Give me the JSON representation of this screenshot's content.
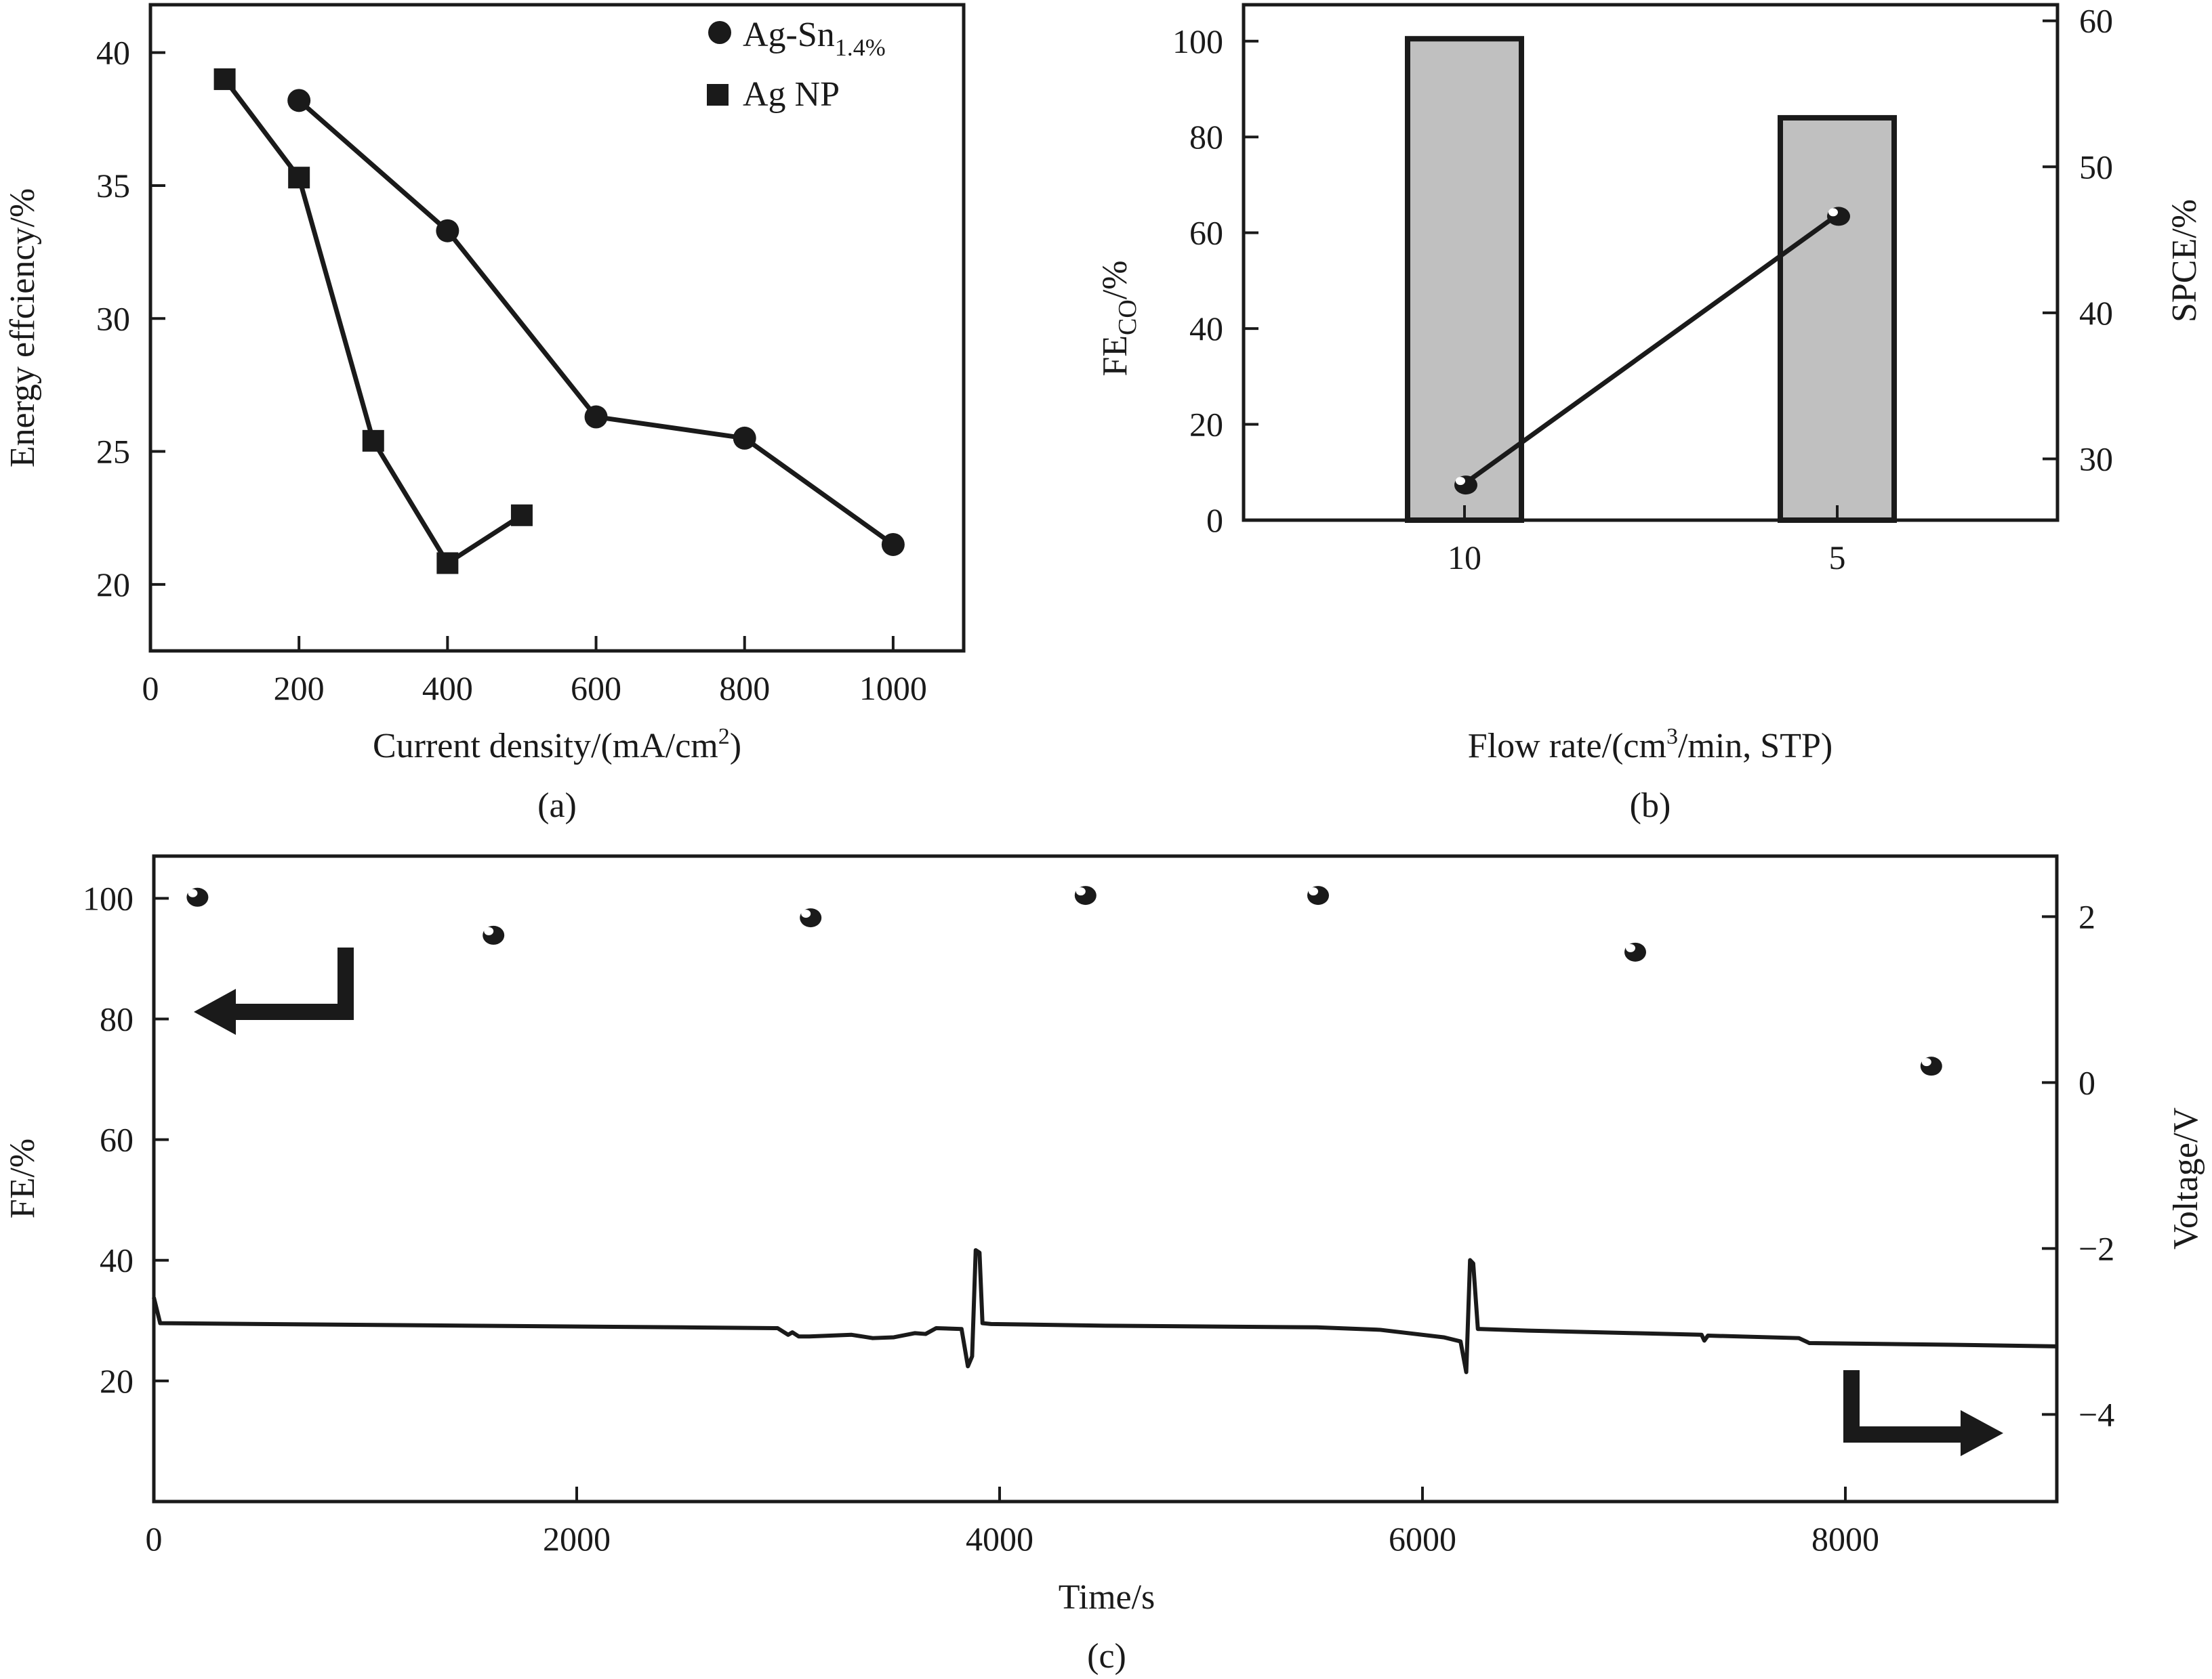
{
  "chart_data": [
    {
      "id": "a",
      "type": "line",
      "panel_label": "(a)",
      "xlabel": "Current density/(mA/cm",
      "xlabel_sup": "2",
      "xlabel_tail": ")",
      "ylabel": "Energy effciency/%",
      "xlim": [
        0,
        1095
      ],
      "ylim": [
        17.5,
        41.8
      ],
      "xticks": [
        0,
        200,
        400,
        600,
        800,
        1000
      ],
      "yticks": [
        20,
        25,
        30,
        35,
        40
      ],
      "grid": false,
      "legend_position": "top-right",
      "series": [
        {
          "name": "Ag-Sn",
          "name_sub": "1.4%",
          "marker": "circle",
          "x": [
            200,
            400,
            600,
            800,
            1000
          ],
          "y": [
            38.2,
            33.3,
            26.3,
            25.5,
            21.5
          ]
        },
        {
          "name": "Ag NP",
          "name_sub": "",
          "marker": "square",
          "x": [
            100,
            200,
            300,
            400,
            500
          ],
          "y": [
            39.0,
            35.3,
            25.4,
            20.8,
            22.6
          ]
        }
      ]
    },
    {
      "id": "b",
      "type": "bar",
      "panel_label": "(b)",
      "xlabel": "Flow rate/(cm",
      "xlabel_sup": "3",
      "xlabel_tail": "/min, STP)",
      "ylabel": "FE",
      "ylabel_sub": "CO",
      "ylabel_tail": "/%",
      "y2label": "SPCE/%",
      "categories": [
        "10",
        "5"
      ],
      "ylim": [
        0,
        107.6
      ],
      "yticks": [
        0,
        20,
        40,
        60,
        80,
        100
      ],
      "y2lim": [
        25.8,
        61.1
      ],
      "y2ticks": [
        30,
        40,
        50,
        60
      ],
      "grid": false,
      "series": [
        {
          "name": "FE_CO",
          "axis": "left",
          "kind": "bar",
          "values": [
            100.5,
            84.0
          ]
        },
        {
          "name": "SPCE",
          "axis": "right",
          "kind": "line-marker",
          "values": [
            28.3,
            46.7
          ]
        }
      ]
    },
    {
      "id": "c",
      "type": "scatter",
      "panel_label": "(c)",
      "xlabel": "Time/s",
      "ylabel": "FE/%",
      "y2label": "Voltage/V",
      "xlim": [
        0,
        9000
      ],
      "xticks": [
        0,
        2000,
        4000,
        6000,
        8000
      ],
      "ylim": [
        0,
        107
      ],
      "yticks": [
        20,
        40,
        60,
        80,
        100
      ],
      "y2lim": [
        -5.05,
        2.73
      ],
      "y2ticks": [
        -4,
        -2,
        0,
        2
      ],
      "y2tick_labels": [
        "−4",
        "−2",
        "0",
        "2"
      ],
      "grid": false,
      "annotations": [
        {
          "type": "arrow",
          "direction": "left",
          "meaning": "FE points refer to left axis"
        },
        {
          "type": "arrow",
          "direction": "right",
          "meaning": "voltage line refers to right axis"
        }
      ],
      "series": [
        {
          "name": "FE",
          "axis": "left",
          "kind": "scatter",
          "x": [
            200,
            1600,
            3100,
            4400,
            5500,
            7000,
            8400
          ],
          "y": [
            100.4,
            94.1,
            97.0,
            100.7,
            100.7,
            91.3,
            72.4
          ]
        },
        {
          "name": "Voltage",
          "axis": "right",
          "kind": "line",
          "x": [
            0,
            30,
            500,
            1500,
            2500,
            2950,
            3000,
            3020,
            3050,
            3100,
            3300,
            3400,
            3500,
            3600,
            3650,
            3700,
            3820,
            3850,
            3870,
            3887,
            3905,
            3919,
            3960,
            4500,
            5500,
            5800,
            6100,
            6180,
            6207,
            6225,
            6240,
            6262,
            6274,
            6500,
            7000,
            7320,
            7333,
            7350,
            7780,
            7830,
            8500,
            9000
          ],
          "y": [
            -2.59,
            -2.9,
            -2.91,
            -2.93,
            -2.95,
            -2.96,
            -3.04,
            -3.01,
            -3.06,
            -3.06,
            -3.04,
            -3.08,
            -3.07,
            -3.02,
            -3.03,
            -2.96,
            -2.97,
            -3.42,
            -3.3,
            -2.02,
            -2.05,
            -2.9,
            -2.91,
            -2.93,
            -2.95,
            -2.98,
            -3.07,
            -3.12,
            -3.49,
            -2.14,
            -2.18,
            -2.97,
            -2.97,
            -2.99,
            -3.02,
            -3.04,
            -3.11,
            -3.05,
            -3.08,
            -3.14,
            -3.16,
            -3.18
          ]
        }
      ]
    }
  ]
}
